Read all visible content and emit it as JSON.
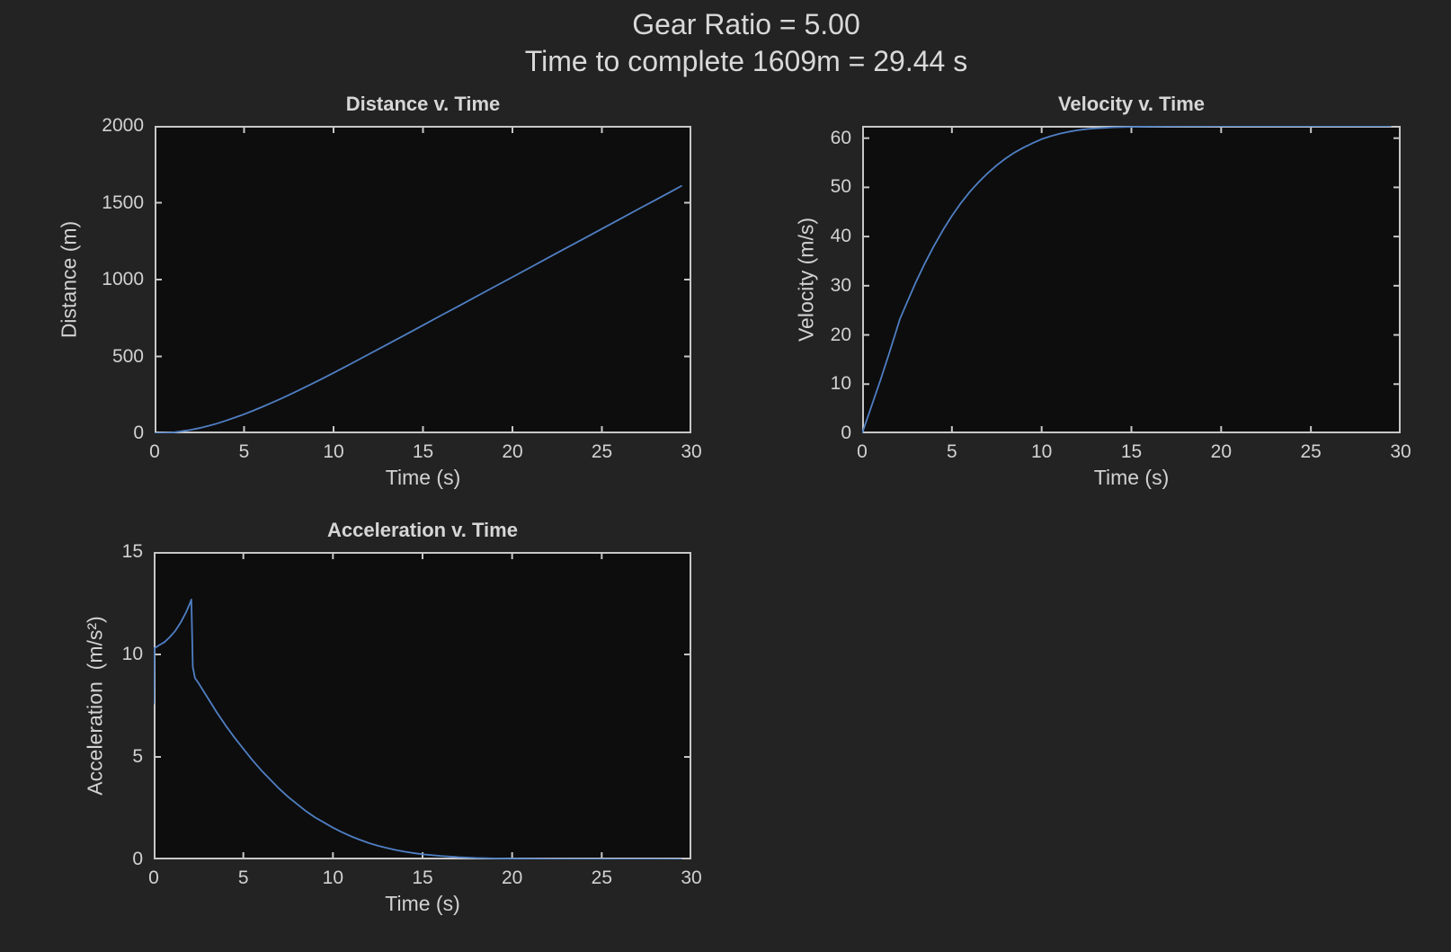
{
  "figure": {
    "suptitle_line1": "Gear Ratio = 5.00",
    "suptitle_line2": "Time to complete 1609m = 29.44 s",
    "background_color": "#232323",
    "axes_background_color": "#0d0d0d",
    "frame_color": "#c7c7c7",
    "text_color": "#d2d2d2",
    "line_color": "#4f7fc4"
  },
  "chart_data": [
    {
      "id": "distance",
      "type": "line",
      "title": "Distance v. Time",
      "xlabel": "Time (s)",
      "ylabel": "Distance (m)",
      "xlim": [
        0,
        30
      ],
      "ylim": [
        0,
        2000
      ],
      "xticks": [
        0,
        5,
        10,
        15,
        20,
        25,
        30
      ],
      "xtick_labels": [
        "0",
        "5",
        "10",
        "15",
        "20",
        "25",
        "30"
      ],
      "yticks": [
        0,
        500,
        1000,
        1500,
        2000
      ],
      "ytick_labels": [
        "0",
        "500",
        "1000",
        "1500",
        "2000"
      ],
      "grid": false,
      "box": true,
      "tick_direction": "in",
      "points": [
        [
          0,
          0
        ],
        [
          1,
          5
        ],
        [
          2,
          22
        ],
        [
          2.5,
          34
        ],
        [
          3,
          48
        ],
        [
          3.5,
          64
        ],
        [
          4,
          83
        ],
        [
          4.5,
          103
        ],
        [
          5,
          124
        ],
        [
          5.5,
          147
        ],
        [
          6,
          171
        ],
        [
          6.5,
          196
        ],
        [
          7,
          222
        ],
        [
          7.5,
          249
        ],
        [
          8,
          277
        ],
        [
          8.5,
          305
        ],
        [
          9,
          334
        ],
        [
          9.5,
          363
        ],
        [
          10,
          393
        ],
        [
          11,
          454
        ],
        [
          12,
          516
        ],
        [
          13,
          578
        ],
        [
          14,
          640
        ],
        [
          15,
          703
        ],
        [
          16,
          766
        ],
        [
          17,
          828
        ],
        [
          18,
          891
        ],
        [
          19,
          954
        ],
        [
          20,
          1016
        ],
        [
          21,
          1079
        ],
        [
          22,
          1142
        ],
        [
          23,
          1205
        ],
        [
          24,
          1267
        ],
        [
          25,
          1330
        ],
        [
          26,
          1393
        ],
        [
          27,
          1456
        ],
        [
          28,
          1518
        ],
        [
          29,
          1581
        ],
        [
          29.44,
          1609
        ]
      ]
    },
    {
      "id": "velocity",
      "type": "line",
      "title": "Velocity v. Time",
      "xlabel": "Time (s)",
      "ylabel": "Velocity (m/s)",
      "xlim": [
        0,
        30
      ],
      "ylim": [
        0,
        62.5
      ],
      "xticks": [
        0,
        5,
        10,
        15,
        20,
        25,
        30
      ],
      "xtick_labels": [
        "0",
        "5",
        "10",
        "15",
        "20",
        "25",
        "30"
      ],
      "yticks": [
        0,
        10,
        20,
        30,
        40,
        50,
        60
      ],
      "ytick_labels": [
        "0",
        "10",
        "20",
        "30",
        "40",
        "50",
        "60"
      ],
      "grid": false,
      "box": true,
      "tick_direction": "in",
      "points": [
        [
          0,
          0
        ],
        [
          0.5,
          5.3
        ],
        [
          1,
          10.6
        ],
        [
          1.5,
          16.2
        ],
        [
          2,
          22
        ],
        [
          2.1,
          23.2
        ],
        [
          2.5,
          26.6
        ],
        [
          3,
          30.8
        ],
        [
          3.5,
          34.6
        ],
        [
          4,
          38.1
        ],
        [
          4.5,
          41.3
        ],
        [
          5,
          44.2
        ],
        [
          5.5,
          46.8
        ],
        [
          6,
          49.1
        ],
        [
          6.5,
          51.1
        ],
        [
          7,
          52.9
        ],
        [
          7.5,
          54.5
        ],
        [
          8,
          55.9
        ],
        [
          8.5,
          57.1
        ],
        [
          9,
          58.1
        ],
        [
          9.5,
          59
        ],
        [
          10,
          59.8
        ],
        [
          10.5,
          60.4
        ],
        [
          11,
          60.9
        ],
        [
          11.5,
          61.3
        ],
        [
          12,
          61.6
        ],
        [
          12.5,
          61.85
        ],
        [
          13,
          62
        ],
        [
          13.5,
          62.1
        ],
        [
          14,
          62.2
        ],
        [
          15,
          62.3
        ],
        [
          16,
          62.37
        ],
        [
          17,
          62.41
        ],
        [
          18,
          62.43
        ],
        [
          19,
          62.44
        ],
        [
          20,
          62.45
        ],
        [
          22,
          62.45
        ],
        [
          24,
          62.45
        ],
        [
          26,
          62.45
        ],
        [
          28,
          62.45
        ],
        [
          29.44,
          62.45
        ]
      ]
    },
    {
      "id": "acceleration",
      "type": "line",
      "title": "Acceleration v. Time",
      "xlabel": "Time (s)",
      "ylabel": "Acceleration  (m/s²)",
      "xlim": [
        0,
        30
      ],
      "ylim": [
        0,
        15
      ],
      "xticks": [
        0,
        5,
        10,
        15,
        20,
        25,
        30
      ],
      "xtick_labels": [
        "0",
        "5",
        "10",
        "15",
        "20",
        "25",
        "30"
      ],
      "yticks": [
        0,
        5,
        10,
        15
      ],
      "ytick_labels": [
        "0",
        "5",
        "10",
        "15"
      ],
      "grid": false,
      "box": true,
      "tick_direction": "in",
      "points": [
        [
          0,
          7.6
        ],
        [
          0.04,
          10.3
        ],
        [
          0.3,
          10.45
        ],
        [
          0.6,
          10.6
        ],
        [
          0.9,
          10.85
        ],
        [
          1.2,
          11.15
        ],
        [
          1.5,
          11.55
        ],
        [
          1.8,
          12.05
        ],
        [
          2,
          12.45
        ],
        [
          2.1,
          12.68
        ],
        [
          2.18,
          9.4
        ],
        [
          2.3,
          8.85
        ],
        [
          2.5,
          8.6
        ],
        [
          3,
          7.9
        ],
        [
          3.5,
          7.2
        ],
        [
          4,
          6.55
        ],
        [
          4.5,
          5.95
        ],
        [
          5,
          5.4
        ],
        [
          5.5,
          4.85
        ],
        [
          6,
          4.35
        ],
        [
          6.5,
          3.9
        ],
        [
          7,
          3.45
        ],
        [
          7.5,
          3.05
        ],
        [
          8,
          2.7
        ],
        [
          8.5,
          2.35
        ],
        [
          9,
          2.05
        ],
        [
          9.5,
          1.8
        ],
        [
          10,
          1.55
        ],
        [
          10.5,
          1.33
        ],
        [
          11,
          1.13
        ],
        [
          11.5,
          0.96
        ],
        [
          12,
          0.8
        ],
        [
          12.5,
          0.67
        ],
        [
          13,
          0.56
        ],
        [
          13.5,
          0.46
        ],
        [
          14,
          0.38
        ],
        [
          14.5,
          0.31
        ],
        [
          15,
          0.25
        ],
        [
          16,
          0.17
        ],
        [
          17,
          0.11
        ],
        [
          18,
          0.07
        ],
        [
          19,
          0.05
        ],
        [
          20,
          0.03
        ],
        [
          22,
          0.015
        ],
        [
          24,
          0.008
        ],
        [
          26,
          0.004
        ],
        [
          28,
          0.002
        ],
        [
          29.44,
          0.001
        ]
      ]
    }
  ]
}
